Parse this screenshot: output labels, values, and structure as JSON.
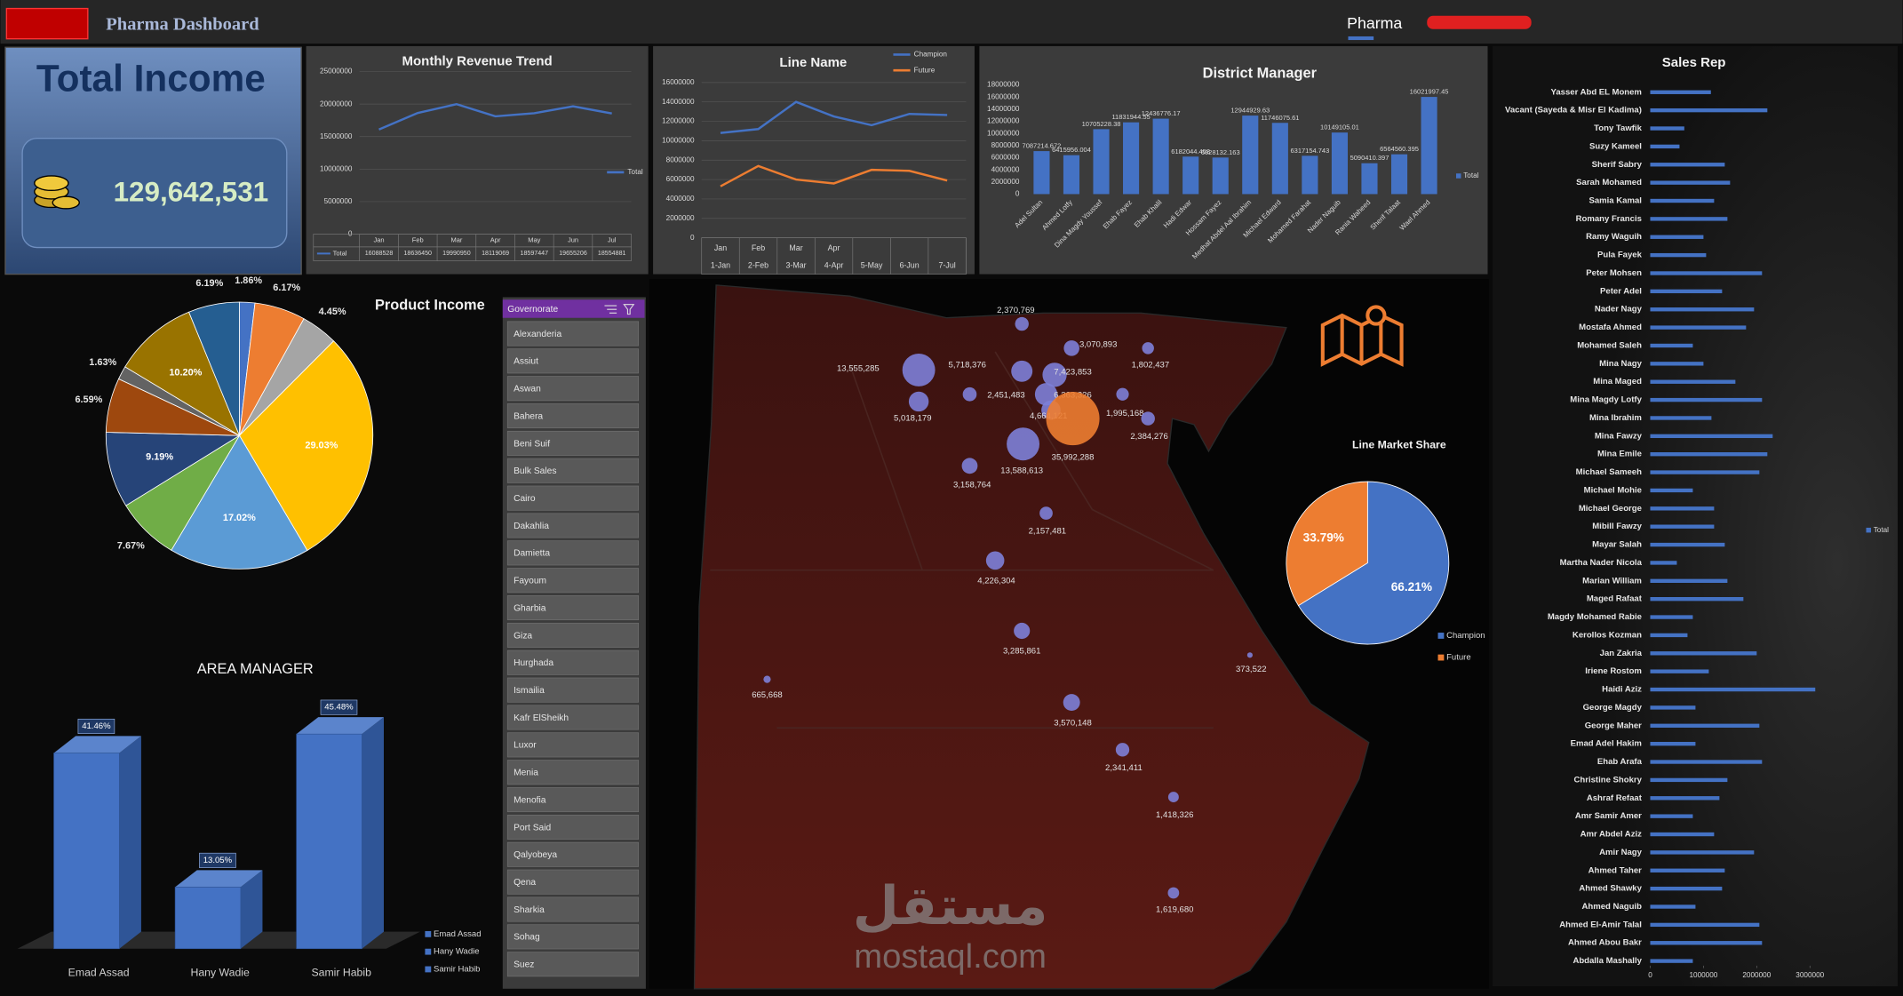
{
  "header": {
    "title": "Pharma Dashboard",
    "tab": "Pharma"
  },
  "total_income": {
    "title": "Total Income",
    "value": "129,642,531"
  },
  "slicer": {
    "title": "Governorate",
    "items": [
      "Alexanderia",
      "Assiut",
      "Aswan",
      "Bahera",
      "Beni Suif",
      "Bulk Sales",
      "Cairo",
      "Dakahlia",
      "Damietta",
      "Fayoum",
      "Gharbia",
      "Giza",
      "Hurghada",
      "Ismailia",
      "Kafr ElSheikh",
      "Luxor",
      "Menia",
      "Menofia",
      "Port Said",
      "Qalyobeya",
      "Qena",
      "Sharkia",
      "Sohag",
      "Suez"
    ]
  },
  "watermark": {
    "arabic": "مستقل",
    "latin": "mostaql.com"
  },
  "chart_data": [
    {
      "type": "line",
      "title": "Monthly Revenue Trend",
      "categories": [
        "Jan",
        "Feb",
        "Mar",
        "Apr",
        "May",
        "Jun",
        "Jul"
      ],
      "series": [
        {
          "name": "Total",
          "color": "#4472c4",
          "values": [
            16088528,
            18636450,
            19990950,
            18119069,
            18597447,
            19655206,
            18554881
          ]
        }
      ],
      "ylim": [
        0,
        25000000
      ],
      "yticks": [
        0,
        5000000,
        10000000,
        15000000,
        20000000,
        25000000
      ],
      "grid": true,
      "data_table": true,
      "legend": "right"
    },
    {
      "type": "line",
      "title": "Line Name",
      "categories": [
        "1-Jan",
        "2-Feb",
        "3-Mar",
        "4-Apr",
        "5-May",
        "6-Jun",
        "7-Jul"
      ],
      "category_groups": [
        "Jan",
        "Feb",
        "Mar",
        "Apr",
        null,
        null,
        null
      ],
      "series": [
        {
          "name": "Champion",
          "color": "#4472c4",
          "values": [
            10800000,
            11200000,
            14000000,
            12500000,
            11600000,
            12760000,
            12650000
          ]
        },
        {
          "name": "Future",
          "color": "#ed7d31",
          "values": [
            5300000,
            7400000,
            6000000,
            5600000,
            7000000,
            6900000,
            5900000
          ]
        }
      ],
      "ylim": [
        0,
        16000000
      ],
      "yticks": [
        0,
        2000000,
        4000000,
        6000000,
        8000000,
        10000000,
        12000000,
        14000000,
        16000000
      ],
      "grid": true,
      "legend": "top-right"
    },
    {
      "type": "bar",
      "title": "District Manager",
      "categories": [
        "Adel Sultan",
        "Ahmed Lotfy",
        "Dina Magdy Youssef",
        "Ehab Fayez",
        "Ehab Khalil",
        "Hadi Edwar",
        "Hossam Fayez",
        "Medhat Abdel Aal Ibrahim",
        "Michael Edward",
        "Mohamed Farahat",
        "Nader Naguib",
        "Rania Waheed",
        "Sherif Talaat",
        "Wael Ahmed"
      ],
      "series": [
        {
          "name": "Total",
          "color": "#4472c4",
          "values": [
            7087214.672,
            6415956.004,
            10705228.38,
            11831944.55,
            12436776.17,
            6182044.458,
            6028132.163,
            12944929.63,
            11746075.61,
            6317154.743,
            10149105.01,
            5090410.397,
            6564560.395,
            16021997.45
          ]
        }
      ],
      "ylim": [
        0,
        18000000
      ],
      "yticks": [
        0,
        2000000,
        4000000,
        6000000,
        8000000,
        10000000,
        12000000,
        14000000,
        16000000,
        18000000
      ],
      "data_labels": true,
      "legend": "right"
    },
    {
      "type": "pie",
      "title": "Product Income",
      "values": [
        1.86,
        6.17,
        4.45,
        29.03,
        17.02,
        7.67,
        9.19,
        6.59,
        1.63,
        10.2,
        6.19
      ],
      "value_labels": [
        "1.86%",
        "6.17%",
        "4.45%",
        "29.03%",
        "17.02%",
        "7.67%",
        "9.19%",
        "6.59%",
        "1.63%",
        "10.20%",
        "6.19%"
      ],
      "colors": [
        "#4472c4",
        "#ed7d31",
        "#a5a5a5",
        "#ffc000",
        "#5b9bd5",
        "#70ad47",
        "#264478",
        "#9e480e",
        "#636363",
        "#997300",
        "#255e91"
      ]
    },
    {
      "type": "bar3d",
      "title": "AREA MANAGER",
      "categories": [
        "Emad Assad",
        "Hany Wadie",
        "Samir Habib"
      ],
      "values": [
        41.46,
        13.05,
        45.48
      ],
      "value_labels": [
        "41.46%",
        "13.05%",
        "45.48%"
      ],
      "color": "#4472c4",
      "legend": "bottom-right"
    },
    {
      "type": "bubble_map",
      "values": [
        2370769,
        3070893,
        1802437,
        13555285,
        5718376,
        7423853,
        2451483,
        6363326,
        4664121,
        1995168,
        35992288,
        5018179,
        2384276,
        13588613,
        3158764,
        2157481,
        4226304,
        3285861,
        373522,
        665668,
        3570148,
        2341411,
        1418326,
        1619680
      ],
      "value_labels": [
        "2,370,769",
        "3,070,893",
        "1,802,437",
        "13,555,285",
        "5,718,376",
        "7,423,853",
        "2,451,483",
        "6,363,326",
        "4,664,121",
        "1,995,168",
        "35,992,288",
        "5,018,179",
        "2,384,276",
        "13,588,613",
        "3,158,764",
        "2,157,481",
        "4,226,304",
        "3,285,861",
        "373,522",
        "665,668",
        "3,570,148",
        "2,341,411",
        "1,418,326",
        "1,619,680"
      ],
      "color": "#7d80d8",
      "max_color": "#ed7d31"
    },
    {
      "type": "pie",
      "title": "Line Market Share",
      "categories": [
        "Champion",
        "Future"
      ],
      "values": [
        66.21,
        33.79
      ],
      "value_labels": [
        "66.21%",
        "33.79%"
      ],
      "colors": [
        "#4472c4",
        "#ed7d31"
      ],
      "legend": "bottom-right"
    },
    {
      "type": "hbar",
      "title": "Sales Rep",
      "categories": [
        "Yasser Abd EL Monem",
        "Vacant  (Sayeda & Misr El Kadima)",
        "Tony Tawfik",
        "Suzy Kameel",
        "Sherif Sabry",
        "Sarah Mohamed",
        "Samia Kamal",
        "Romany Francis",
        "Ramy Waguih",
        "Pula Fayek",
        "Peter Mohsen",
        "Peter Adel",
        "Nader Nagy",
        "Mostafa Ahmed",
        "Mohamed Saleh",
        "Mina Nagy",
        "Mina Maged",
        "Mina Magdy Lotfy",
        "Mina Ibrahim",
        "Mina Fawzy",
        "Mina Emile",
        "Michael Sameeh",
        "Michael Mohie",
        "Michael George",
        "Mibill Fawzy",
        "Mayar Salah",
        "Martha Nader Nicola",
        "Marian William",
        "Maged Rafaat",
        "Magdy Mohamed Rabie",
        "Kerollos Kozman",
        "Jan Zakria",
        "Iriene Rostom",
        "Haidi Aziz",
        "George Magdy",
        "George  Maher",
        "Emad Adel Hakim",
        "Ehab Arafa",
        "Christine Shokry",
        "Ashraf Refaat",
        "Amr Samir Amer",
        "Amr Abdel Aziz",
        "Amir Nagy",
        "Ahmed Taher",
        "Ahmed Shawky",
        "Ahmed Naguib",
        "Ahmed El-Amir Talal",
        "Ahmed Abou Bakr",
        "Abdalla Mashally"
      ],
      "series": [
        {
          "name": "Total",
          "color": "#4472c4",
          "values": [
            1140000,
            2200000,
            640000,
            550000,
            1400000,
            1500000,
            1200000,
            1450000,
            1000000,
            1050000,
            2100000,
            1350000,
            1950000,
            1800000,
            800000,
            1000000,
            1600000,
            2100000,
            1150000,
            2300000,
            2200000,
            2050000,
            800000,
            1200000,
            1200000,
            1400000,
            500000,
            1450000,
            1750000,
            800000,
            700000,
            2000000,
            1100000,
            3100000,
            850000,
            2050000,
            850000,
            2100000,
            1450000,
            1300000,
            800000,
            1200000,
            1950000,
            1400000,
            1350000,
            850000,
            2050000,
            2100000,
            800000
          ]
        }
      ],
      "xlim": [
        0,
        3600000
      ],
      "xticks": [
        0,
        1000000,
        2000000,
        3000000
      ],
      "legend": "right"
    }
  ]
}
